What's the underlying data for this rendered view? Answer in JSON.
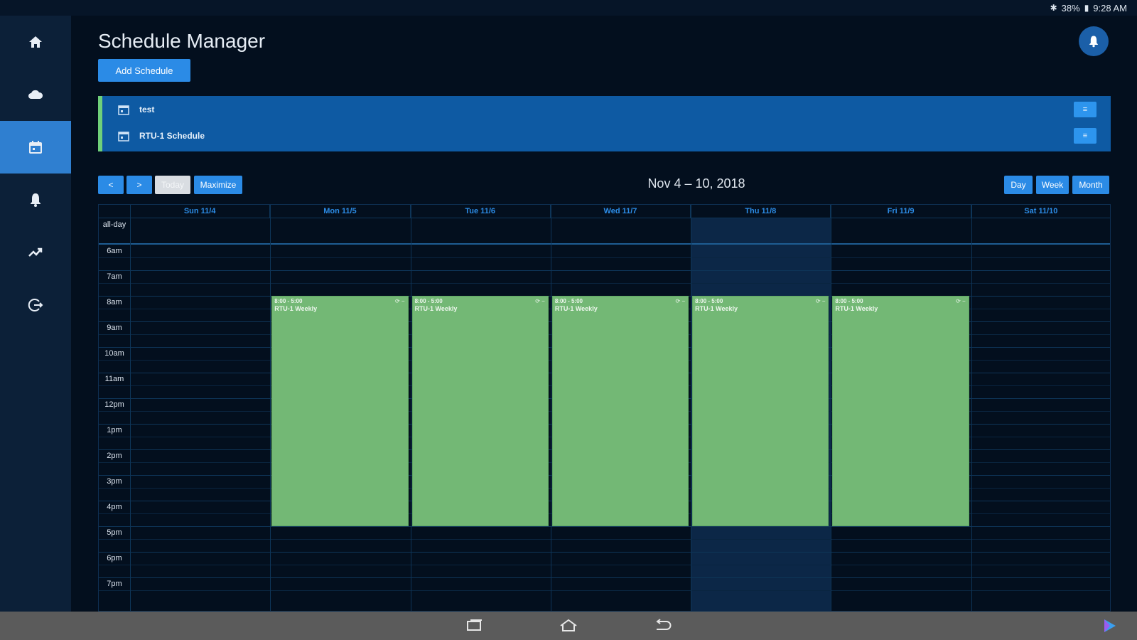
{
  "status_bar": {
    "battery": "38%",
    "time": "9:28 AM"
  },
  "sidebar": {
    "items": [
      {
        "name": "home",
        "icon": "home-icon"
      },
      {
        "name": "cloud",
        "icon": "cloud-icon"
      },
      {
        "name": "schedule",
        "icon": "calendar-icon",
        "active": true
      },
      {
        "name": "alarms",
        "icon": "bell-icon"
      },
      {
        "name": "trends",
        "icon": "trend-icon"
      },
      {
        "name": "logout",
        "icon": "logout-icon"
      }
    ]
  },
  "header": {
    "title": "Schedule Manager",
    "add_label": "Add Schedule"
  },
  "schedules": [
    {
      "name": "test"
    },
    {
      "name": "RTU-1 Schedule"
    }
  ],
  "toolbar": {
    "prev_label": "<",
    "next_label": ">",
    "today_label": "Today",
    "maximize_label": "Maximize",
    "range": "Nov 4 – 10, 2018",
    "day_label": "Day",
    "week_label": "Week",
    "month_label": "Month"
  },
  "calendar": {
    "days": [
      "Sun 11/4",
      "Mon 11/5",
      "Tue 11/6",
      "Wed 11/7",
      "Thu 11/8",
      "Fri 11/9",
      "Sat 11/10"
    ],
    "all_day_label": "all-day",
    "times": [
      "6am",
      "7am",
      "8am",
      "9am",
      "10am",
      "11am",
      "12pm",
      "1pm",
      "2pm",
      "3pm",
      "4pm",
      "5pm",
      "6pm",
      "7pm"
    ],
    "today_index": 4,
    "events": [
      {
        "day": 1,
        "start_hour": 8,
        "end_hour": 17,
        "time": "8:00 - 5:00",
        "title": "RTU-1 Weekly"
      },
      {
        "day": 2,
        "start_hour": 8,
        "end_hour": 17,
        "time": "8:00 - 5:00",
        "title": "RTU-1 Weekly"
      },
      {
        "day": 3,
        "start_hour": 8,
        "end_hour": 17,
        "time": "8:00 - 5:00",
        "title": "RTU-1 Weekly"
      },
      {
        "day": 4,
        "start_hour": 8,
        "end_hour": 17,
        "time": "8:00 - 5:00",
        "title": "RTU-1 Weekly"
      },
      {
        "day": 5,
        "start_hour": 8,
        "end_hour": 17,
        "time": "8:00 - 5:00",
        "title": "RTU-1 Weekly"
      }
    ]
  },
  "colors": {
    "accent": "#2b8be6",
    "event": "#73b875",
    "background": "#030f1e",
    "sidebar": "#0c2038"
  }
}
